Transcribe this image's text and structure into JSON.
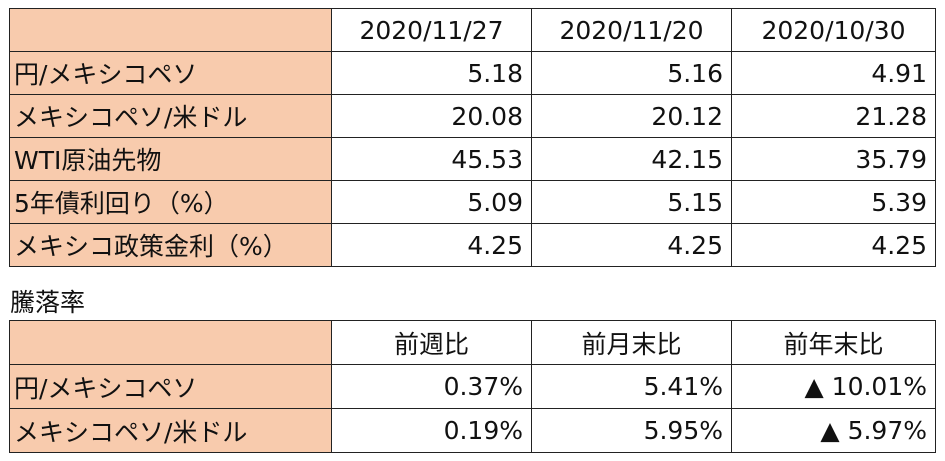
{
  "table1": {
    "header": [
      "",
      "2020/11/27",
      "2020/11/20",
      "2020/10/30"
    ],
    "rows": [
      [
        "円/メキシコペソ",
        "5.18",
        "5.16",
        "4.91"
      ],
      [
        "メキシコペソ/米ドル",
        "20.08",
        "20.12",
        "21.28"
      ],
      [
        "WTI原油先物",
        "45.53",
        "42.15",
        "35.79"
      ],
      [
        "5年債利回り（%）",
        "5.09",
        "5.15",
        "5.39"
      ],
      [
        "メキシコ政策金利（%）",
        "4.25",
        "4.25",
        "4.25"
      ]
    ]
  },
  "caption": "騰落率",
  "table2": {
    "header": [
      "",
      "前週比",
      "前月末比",
      "前年末比"
    ],
    "rows": [
      [
        "円/メキシコペソ",
        "0.37%",
        "5.41%",
        "▲ 10.01%"
      ],
      [
        "メキシコペソ/米ドル",
        "0.19%",
        "5.95%",
        "▲ 5.97%"
      ]
    ]
  }
}
